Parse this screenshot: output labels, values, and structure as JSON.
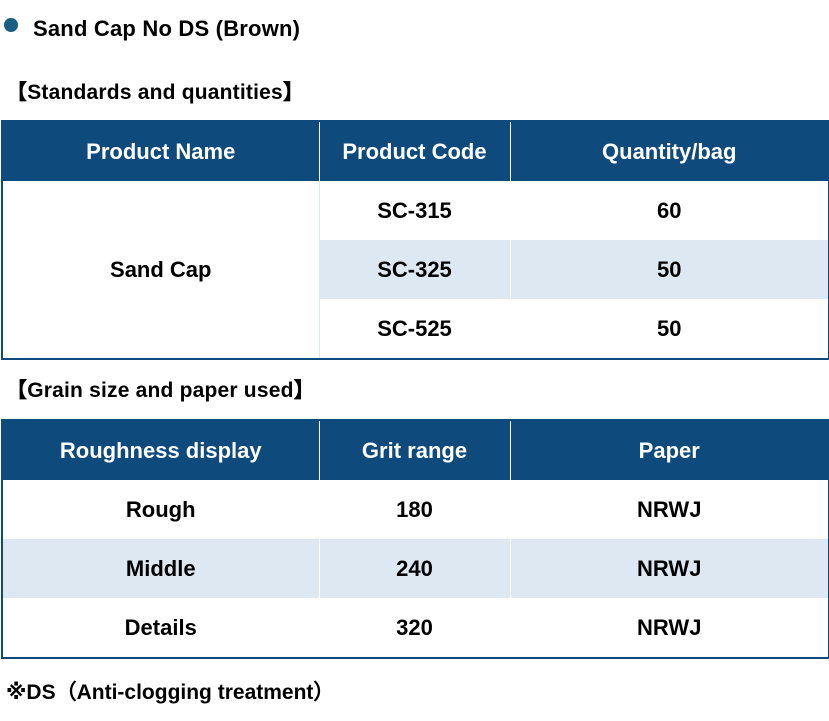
{
  "colors": {
    "header_bg": "#0e4a7c",
    "bullet": "#1b5e84",
    "row_light": "#ffffff",
    "row_alt": "#dde8f3"
  },
  "title": "Sand Cap No DS (Brown)",
  "standards": {
    "heading": "【Standards and quantities】",
    "headers": [
      "Product Name",
      "Product Code",
      "Quantity/bag"
    ],
    "product_name": "Sand Cap",
    "rows": [
      {
        "code": "SC-315",
        "quantity": "60"
      },
      {
        "code": "SC-325",
        "quantity": "50"
      },
      {
        "code": "SC-525",
        "quantity": "50"
      }
    ]
  },
  "grain": {
    "heading": "【Grain size and paper used】",
    "headers": [
      "Roughness display",
      "Grit range",
      "Paper"
    ],
    "rows": [
      {
        "roughness": "Rough",
        "grit": "180",
        "paper": "NRWJ"
      },
      {
        "roughness": "Middle",
        "grit": "240",
        "paper": "NRWJ"
      },
      {
        "roughness": "Details",
        "grit": "320",
        "paper": "NRWJ"
      }
    ]
  },
  "note": "※DS（Anti-clogging treatment）"
}
